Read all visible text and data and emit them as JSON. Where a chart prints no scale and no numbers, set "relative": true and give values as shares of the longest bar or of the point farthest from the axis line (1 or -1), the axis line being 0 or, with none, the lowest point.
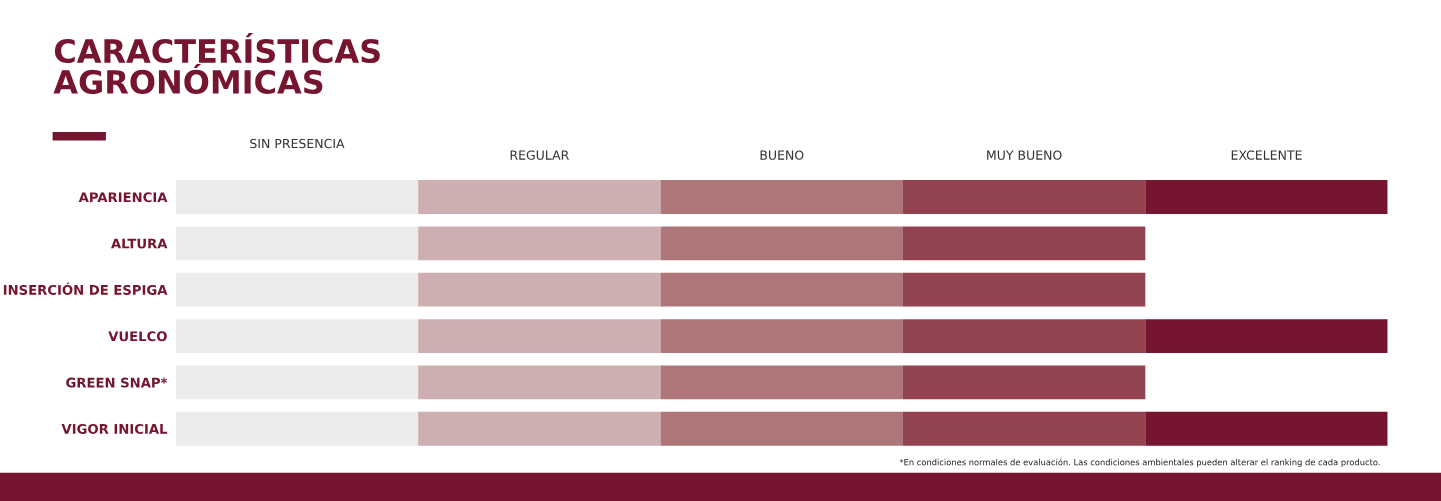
{
  "chart_data": {
    "type": "bar",
    "orientation": "horizontal",
    "stacked": true,
    "relative": true,
    "title": "CARACTERÍSTICAS\nAGRONÓMICAS",
    "categories": [
      "APARIENCIA",
      "ALTURA",
      "INSERCIÓN DE ESPIGA",
      "VUELCO",
      "GREEN SNAP*",
      "VIGOR INICIAL"
    ],
    "series": [
      {
        "name": "SIN PRESENCIA",
        "color": "#eeebee",
        "values": [
          0.2,
          0.2,
          0.2,
          0.2,
          0.2,
          0.2
        ]
      },
      {
        "name": "REGULAR",
        "color": "#cdafb1",
        "values": [
          0.2,
          0.2,
          0.2,
          0.2,
          0.2,
          0.2
        ]
      },
      {
        "name": "BUENO",
        "color": "#ad7679",
        "values": [
          0.2,
          0.2,
          0.2,
          0.2,
          0.2,
          0.2
        ]
      },
      {
        "name": "MUY BUENO",
        "color": "#92434f",
        "values": [
          0.2,
          0.2,
          0.2,
          0.2,
          0.2,
          0.2
        ]
      },
      {
        "name": "EXCELENTE",
        "color": "#761530",
        "values": [
          0.2,
          null,
          null,
          0.2,
          null,
          0.2
        ]
      }
    ],
    "annotations": [
      "*En condiciones normales de evaluación. Las condiciones ambientales pueden alterar el ranking de cada producto."
    ],
    "grid": false,
    "legend": false
  }
}
